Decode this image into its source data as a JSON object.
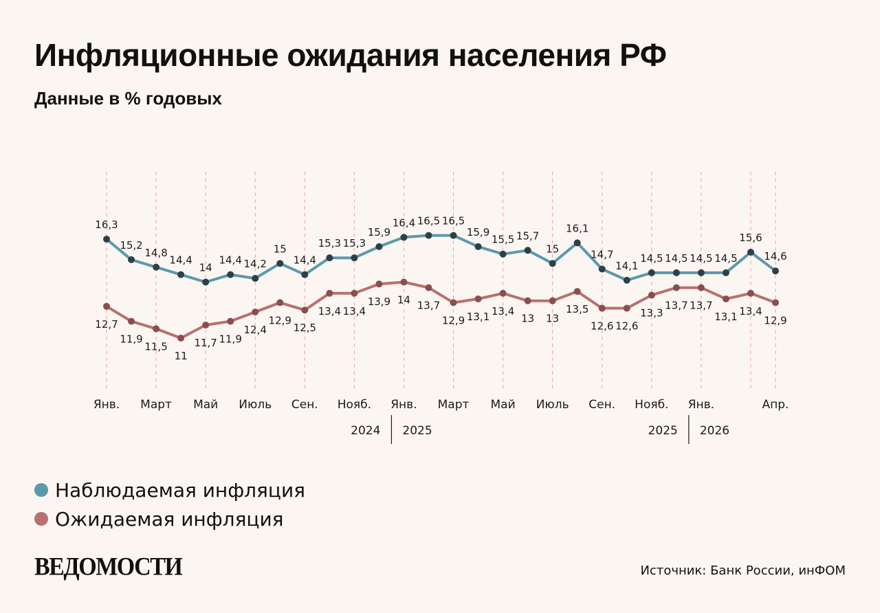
{
  "header": {
    "title": "Инфляционные ожидания населения РФ",
    "subtitle": "Данные в % годовых"
  },
  "colors": {
    "background": "#fcf6f2",
    "observed": "#5a9aab",
    "expected": "#b87070",
    "marker": "#2f3f45"
  },
  "chart_data": {
    "type": "line",
    "x": [
      "2024-01",
      "2024-02",
      "2024-03",
      "2024-04",
      "2024-05",
      "2024-06",
      "2024-07",
      "2024-08",
      "2024-09",
      "2024-10",
      "2024-11",
      "2024-12",
      "2025-01",
      "2025-02",
      "2025-03",
      "2025-04",
      "2025-05",
      "2025-06",
      "2025-07",
      "2025-08",
      "2025-09",
      "2025-10",
      "2025-11",
      "2025-12",
      "2026-01",
      "2026-02",
      "2026-03",
      "2026-04"
    ],
    "x_tick_labels": [
      "Янв.",
      "",
      "Март",
      "",
      "Май",
      "",
      "Июль",
      "",
      "Сен.",
      "",
      "Нояб.",
      "",
      "Янв.",
      "",
      "Март",
      "",
      "Май",
      "",
      "Июль",
      "",
      "Сен.",
      "",
      "Нояб.",
      "",
      "Янв.",
      "",
      "",
      "Апр."
    ],
    "year_labels": [
      {
        "left": "2024",
        "right": "2025"
      },
      {
        "left": "2025",
        "right": "2026"
      }
    ],
    "series": [
      {
        "name": "Наблюдаемая инфляция",
        "values": [
          16.3,
          15.2,
          14.8,
          14.4,
          14.0,
          14.4,
          14.2,
          15.0,
          14.4,
          15.3,
          15.3,
          15.9,
          16.4,
          16.5,
          16.5,
          15.9,
          15.5,
          15.7,
          15.0,
          16.1,
          14.7,
          14.1,
          14.5,
          14.5,
          14.5,
          14.5,
          15.6,
          14.6
        ],
        "value_labels": [
          "16,3",
          "15,2",
          "14,8",
          "14,4",
          "14",
          "14,4",
          "14,2",
          "15",
          "14,4",
          "15,3",
          "15,3",
          "15,9",
          "16,4",
          "16,5",
          "16,5",
          "15,9",
          "15,5",
          "15,7",
          "15",
          "16,1",
          "14,7",
          "14,1",
          "14,5",
          "14,5",
          "14,5",
          "14,5",
          "15,6",
          "14,6"
        ]
      },
      {
        "name": "Ожидаемая инфляция",
        "values": [
          12.7,
          11.9,
          11.5,
          11.0,
          11.7,
          11.9,
          12.4,
          12.9,
          12.5,
          13.4,
          13.4,
          13.9,
          14.0,
          13.7,
          12.9,
          13.1,
          13.4,
          13.0,
          13.0,
          13.5,
          12.6,
          12.6,
          13.3,
          13.7,
          13.7,
          13.1,
          13.4,
          12.9
        ],
        "value_labels": [
          "12,7",
          "11,9",
          "11,5",
          "11",
          "11,7",
          "11,9",
          "12,4",
          "12,9",
          "12,5",
          "13,4",
          "13,4",
          "13,9",
          "14",
          "13,7",
          "12,9",
          "13,1",
          "13,4",
          "13",
          "13",
          "13,5",
          "12,6",
          "12,6",
          "13,3",
          "13,7",
          "13,7",
          "13,1",
          "13,4",
          "12,9"
        ]
      }
    ],
    "legend": "bottom-left",
    "grid": "vertical dashed lines"
  },
  "legend": {
    "observed": "Наблюдаемая инфляция",
    "expected": "Ожидаемая инфляция"
  },
  "footer": {
    "logo": "ВЕДОМОСТИ",
    "source": "Источник: Банк России, инФОМ"
  }
}
